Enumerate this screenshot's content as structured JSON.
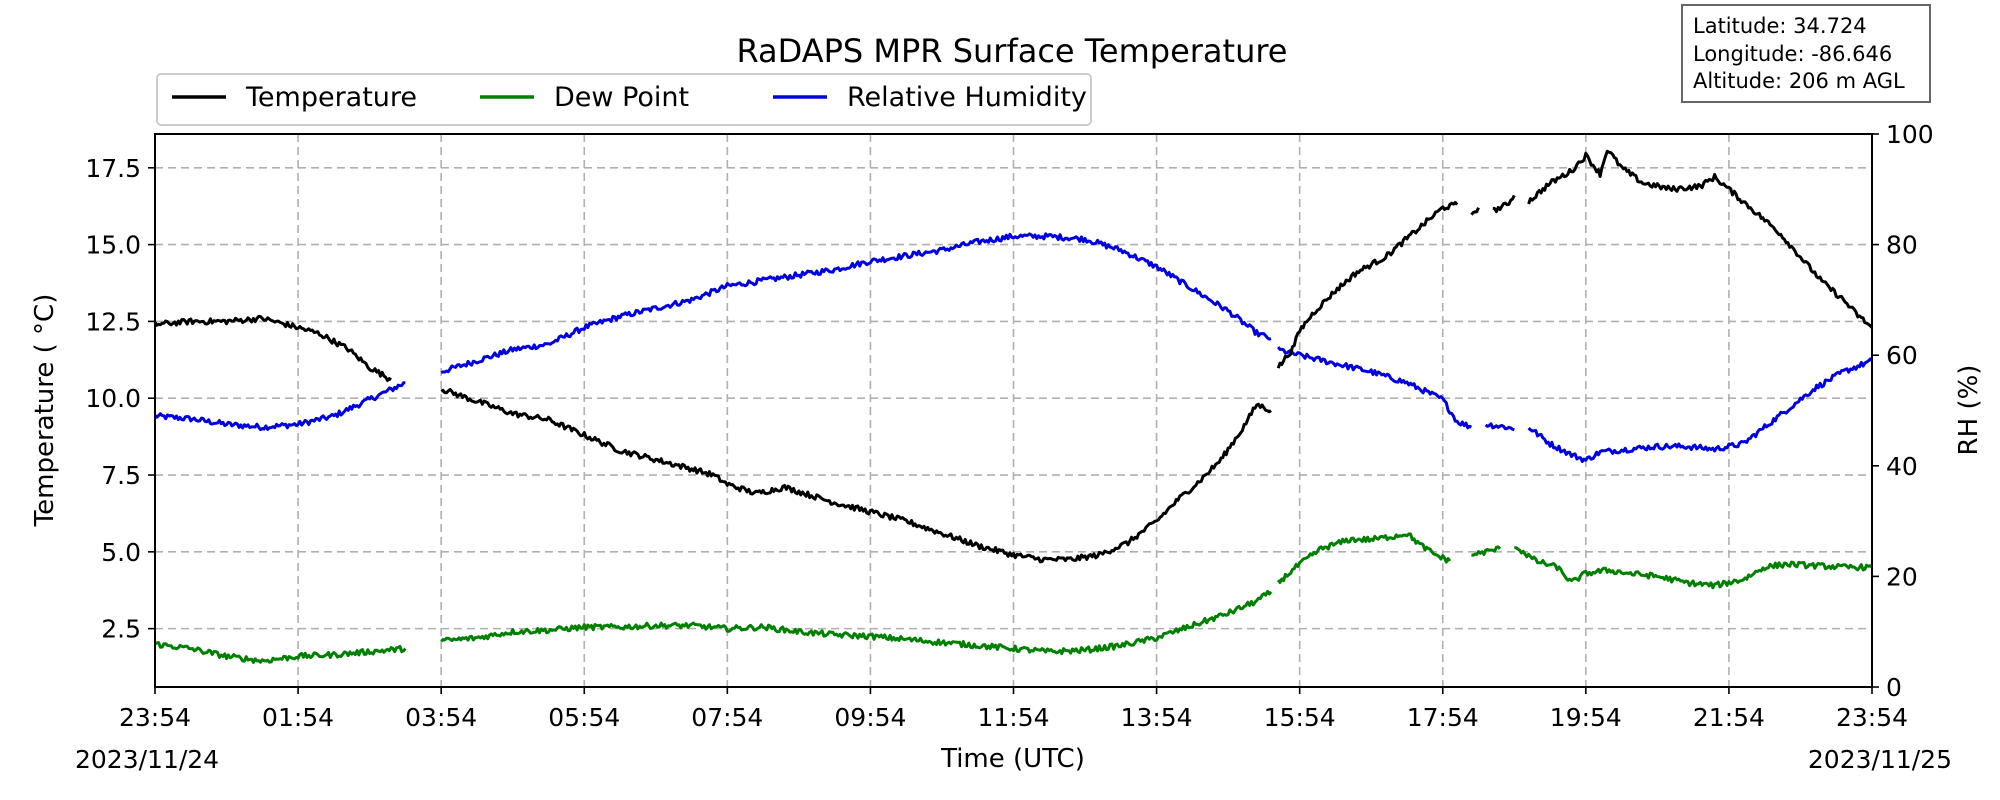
{
  "chart_data": {
    "type": "line",
    "title": "RaDAPS MPR Surface Temperature",
    "xlabel": "Time (UTC)",
    "ylabel_left": "Temperature ($^\\circ$C)",
    "ylabel_left_display": "Temperature ( °C)",
    "ylabel_right": "RH (%)",
    "x_ticks": [
      "23:54",
      "01:54",
      "03:54",
      "05:54",
      "07:54",
      "09:54",
      "11:54",
      "13:54",
      "15:54",
      "17:54",
      "19:54",
      "21:54",
      "23:54"
    ],
    "x_ticks_hours": [
      0,
      2,
      4,
      6,
      8,
      10,
      12,
      14,
      16,
      18,
      20,
      22,
      24
    ],
    "x_range_hours": [
      0,
      24
    ],
    "start_date": "2023/11/24",
    "end_date": "2023/11/25",
    "ylim_left": [
      0.6,
      18.6
    ],
    "yticks_left": [
      "2.5",
      "5.0",
      "7.5",
      "10.0",
      "12.5",
      "15.0",
      "17.5"
    ],
    "ylim_right": [
      0,
      100
    ],
    "yticks_right": [
      "0",
      "20",
      "40",
      "60",
      "80",
      "100"
    ],
    "grid": true,
    "legend_placement": "top-left",
    "series": [
      {
        "name": "Temperature",
        "axis": "left",
        "color": "#000000",
        "segments": [
          [
            [
              0,
              12.4
            ],
            [
              0.5,
              12.5
            ],
            [
              1.0,
              12.5
            ],
            [
              1.5,
              12.6
            ],
            [
              2.0,
              12.3
            ],
            [
              2.3,
              12.1
            ],
            [
              2.7,
              11.6
            ],
            [
              3.0,
              11.0
            ],
            [
              3.3,
              10.6
            ]
          ],
          [
            [
              4.0,
              10.3
            ],
            [
              4.5,
              9.9
            ],
            [
              5.0,
              9.5
            ],
            [
              5.5,
              9.3
            ],
            [
              6.0,
              8.8
            ],
            [
              6.5,
              8.3
            ],
            [
              7.0,
              8.0
            ],
            [
              7.5,
              7.7
            ],
            [
              7.8,
              7.5
            ],
            [
              8.0,
              7.2
            ],
            [
              8.4,
              6.9
            ],
            [
              8.8,
              7.1
            ],
            [
              9.5,
              6.6
            ],
            [
              10.0,
              6.3
            ],
            [
              10.5,
              6.0
            ],
            [
              11.0,
              5.6
            ],
            [
              11.5,
              5.2
            ],
            [
              12.0,
              4.9
            ],
            [
              12.4,
              4.75
            ],
            [
              12.8,
              4.75
            ],
            [
              13.2,
              4.9
            ],
            [
              13.6,
              5.3
            ],
            [
              14.0,
              6.0
            ],
            [
              14.3,
              6.7
            ],
            [
              14.6,
              7.3
            ],
            [
              14.9,
              8.0
            ],
            [
              15.2,
              9.0
            ],
            [
              15.4,
              9.8
            ],
            [
              15.6,
              9.6
            ]
          ],
          [
            [
              15.7,
              11.0
            ],
            [
              15.9,
              11.6
            ],
            [
              16.0,
              12.2
            ],
            [
              16.2,
              12.8
            ],
            [
              16.5,
              13.5
            ],
            [
              16.8,
              14.1
            ],
            [
              17.2,
              14.6
            ],
            [
              17.5,
              15.2
            ],
            [
              17.8,
              15.8
            ],
            [
              18.0,
              16.2
            ],
            [
              18.2,
              16.3
            ]
          ],
          [
            [
              18.4,
              16.0
            ],
            [
              18.5,
              16.2
            ]
          ],
          [
            [
              18.7,
              16.1
            ],
            [
              18.9,
              16.3
            ],
            [
              19.0,
              16.6
            ]
          ],
          [
            [
              19.2,
              16.4
            ],
            [
              19.5,
              17.0
            ],
            [
              19.8,
              17.4
            ],
            [
              20.0,
              17.9
            ],
            [
              20.2,
              17.3
            ],
            [
              20.3,
              18.1
            ],
            [
              20.5,
              17.5
            ],
            [
              20.8,
              17.0
            ],
            [
              21.2,
              16.8
            ],
            [
              21.6,
              16.9
            ],
            [
              21.8,
              17.2
            ],
            [
              22.0,
              16.8
            ],
            [
              22.3,
              16.2
            ],
            [
              22.7,
              15.4
            ],
            [
              23.0,
              14.6
            ],
            [
              23.3,
              13.8
            ],
            [
              23.6,
              13.2
            ],
            [
              23.8,
              12.7
            ],
            [
              24.0,
              12.3
            ]
          ]
        ]
      },
      {
        "name": "Dew Point",
        "axis": "left",
        "color": "#008000",
        "segments": [
          [
            [
              0,
              2.0
            ],
            [
              0.5,
              1.85
            ],
            [
              1.0,
              1.6
            ],
            [
              1.5,
              1.45
            ],
            [
              2.0,
              1.6
            ],
            [
              2.5,
              1.65
            ],
            [
              3.0,
              1.75
            ],
            [
              3.5,
              1.85
            ]
          ],
          [
            [
              4.0,
              2.1
            ],
            [
              4.5,
              2.2
            ],
            [
              5.0,
              2.4
            ],
            [
              5.5,
              2.45
            ],
            [
              6.0,
              2.55
            ],
            [
              6.5,
              2.55
            ],
            [
              7.0,
              2.6
            ],
            [
              7.5,
              2.6
            ],
            [
              8.0,
              2.5
            ],
            [
              8.5,
              2.55
            ],
            [
              9.0,
              2.4
            ],
            [
              9.5,
              2.3
            ],
            [
              10.0,
              2.25
            ],
            [
              10.5,
              2.15
            ],
            [
              11.0,
              2.05
            ],
            [
              11.5,
              1.95
            ],
            [
              12.0,
              1.85
            ],
            [
              12.5,
              1.75
            ],
            [
              13.0,
              1.8
            ],
            [
              13.5,
              1.95
            ],
            [
              14.0,
              2.2
            ],
            [
              14.5,
              2.6
            ],
            [
              15.0,
              3.0
            ],
            [
              15.4,
              3.4
            ],
            [
              15.6,
              3.7
            ]
          ],
          [
            [
              15.7,
              4.0
            ],
            [
              16.0,
              4.6
            ],
            [
              16.3,
              5.1
            ],
            [
              16.7,
              5.4
            ],
            [
              17.0,
              5.4
            ],
            [
              17.3,
              5.5
            ],
            [
              17.5,
              5.6
            ],
            [
              17.7,
              5.2
            ],
            [
              17.9,
              4.9
            ],
            [
              18.1,
              4.7
            ]
          ],
          [
            [
              18.4,
              4.9
            ],
            [
              18.6,
              5.0
            ],
            [
              18.8,
              5.1
            ]
          ],
          [
            [
              19.0,
              5.2
            ],
            [
              19.3,
              4.7
            ],
            [
              19.6,
              4.5
            ],
            [
              19.8,
              4.0
            ],
            [
              20.0,
              4.3
            ],
            [
              20.3,
              4.4
            ],
            [
              20.6,
              4.3
            ],
            [
              21.0,
              4.2
            ],
            [
              21.4,
              4.0
            ],
            [
              21.8,
              3.9
            ],
            [
              22.2,
              4.1
            ],
            [
              22.5,
              4.5
            ],
            [
              22.8,
              4.6
            ],
            [
              23.2,
              4.55
            ],
            [
              23.6,
              4.5
            ],
            [
              24.0,
              4.5
            ]
          ]
        ]
      },
      {
        "name": "Relative Humidity",
        "axis": "right",
        "color": "#0000e0",
        "segments": [
          [
            [
              0,
              49
            ],
            [
              0.5,
              48.5
            ],
            [
              1.0,
              47.5
            ],
            [
              1.5,
              47
            ],
            [
              2.0,
              47.5
            ],
            [
              2.5,
              49
            ],
            [
              3.0,
              52
            ],
            [
              3.5,
              55
            ]
          ],
          [
            [
              4.0,
              57
            ],
            [
              4.5,
              59
            ],
            [
              5.0,
              61
            ],
            [
              5.5,
              62
            ],
            [
              6.0,
              65
            ],
            [
              6.5,
              67
            ],
            [
              7.0,
              68.5
            ],
            [
              7.5,
              70
            ],
            [
              8.0,
              72.5
            ],
            [
              8.5,
              73.5
            ],
            [
              9.0,
              74.5
            ],
            [
              9.5,
              75.5
            ],
            [
              10.0,
              77
            ],
            [
              10.5,
              78
            ],
            [
              11.0,
              79
            ],
            [
              11.5,
              80.5
            ],
            [
              12.0,
              81.5
            ],
            [
              12.5,
              81.5
            ],
            [
              13.0,
              81
            ],
            [
              13.5,
              79
            ],
            [
              14.0,
              76
            ],
            [
              14.5,
              72
            ],
            [
              15.0,
              68
            ],
            [
              15.4,
              64
            ],
            [
              15.6,
              63
            ]
          ],
          [
            [
              15.7,
              61
            ],
            [
              16.0,
              60
            ],
            [
              16.5,
              58.5
            ],
            [
              17.0,
              57
            ],
            [
              17.5,
              55
            ],
            [
              18.0,
              52
            ],
            [
              18.2,
              48
            ],
            [
              18.4,
              47
            ]
          ],
          [
            [
              18.6,
              47.5
            ],
            [
              18.9,
              47
            ],
            [
              19.0,
              46.5
            ]
          ],
          [
            [
              19.2,
              47
            ],
            [
              19.5,
              44
            ],
            [
              19.8,
              42
            ],
            [
              20.0,
              41
            ],
            [
              20.2,
              42.5
            ],
            [
              20.6,
              43
            ],
            [
              21.0,
              43.5
            ],
            [
              21.4,
              43.5
            ],
            [
              21.8,
              43
            ],
            [
              22.2,
              44
            ],
            [
              22.5,
              47
            ],
            [
              22.8,
              50
            ],
            [
              23.2,
              54
            ],
            [
              23.6,
              57
            ],
            [
              24.0,
              59
            ]
          ]
        ]
      }
    ]
  },
  "info_box": {
    "latitude": "Latitude: 34.724",
    "longitude": "Longitude: -86.646",
    "altitude": "Altitude: 206 m AGL"
  }
}
